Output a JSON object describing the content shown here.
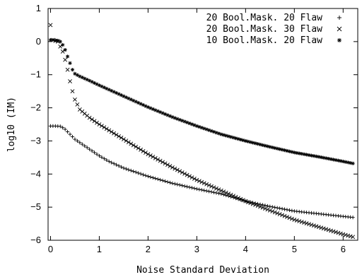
{
  "chart_data": {
    "type": "scatter",
    "title": "",
    "xlabel": "Noise Standard Deviation",
    "ylabel": "log10 (IM)",
    "xlim": [
      -0.05,
      6.3
    ],
    "ylim": [
      -6,
      1
    ],
    "xticks": [
      0,
      1,
      2,
      3,
      4,
      5,
      6
    ],
    "yticks": [
      1,
      0,
      -1,
      -2,
      -3,
      -4,
      -5,
      -6
    ],
    "grid": false,
    "legend_position": "top-right",
    "series": [
      {
        "name": "20 Bool.Mask. 20 Flaw",
        "marker": "plus",
        "x": [
          0.0,
          0.1,
          0.2,
          0.25,
          0.3,
          0.4,
          0.5,
          0.6,
          0.8,
          1.0,
          1.2,
          1.5,
          2.0,
          2.5,
          3.0,
          3.5,
          4.0,
          4.5,
          5.0,
          5.5,
          6.0,
          6.2
        ],
        "y": [
          -2.55,
          -2.55,
          -2.56,
          -2.6,
          -2.65,
          -2.8,
          -2.95,
          -3.05,
          -3.25,
          -3.45,
          -3.62,
          -3.82,
          -4.07,
          -4.28,
          -4.45,
          -4.6,
          -4.82,
          -4.98,
          -5.12,
          -5.2,
          -5.28,
          -5.31
        ]
      },
      {
        "name": "20 Bool.Mask. 30 Flaw",
        "marker": "cross",
        "x": [
          0.0,
          0.05,
          0.1,
          0.15,
          0.2,
          0.25,
          0.3,
          0.35,
          0.4,
          0.45,
          0.5,
          0.6,
          0.8,
          1.0,
          1.2,
          1.5,
          2.0,
          2.5,
          3.0,
          3.5,
          4.0,
          4.5,
          5.0,
          5.5,
          6.0,
          6.2
        ],
        "y": [
          0.5,
          0.05,
          0.02,
          0.0,
          -0.15,
          -0.3,
          -0.55,
          -0.85,
          -1.2,
          -1.5,
          -1.75,
          -2.05,
          -2.3,
          -2.5,
          -2.68,
          -2.95,
          -3.4,
          -3.8,
          -4.18,
          -4.5,
          -4.82,
          -5.1,
          -5.38,
          -5.6,
          -5.82,
          -5.9
        ]
      },
      {
        "name": "10 Bool.Mask. 20 Flaw",
        "marker": "star",
        "x": [
          0.0,
          0.05,
          0.1,
          0.15,
          0.2,
          0.25,
          0.3,
          0.35,
          0.4,
          0.45,
          0.5,
          0.6,
          0.8,
          1.0,
          1.5,
          2.0,
          2.5,
          3.0,
          3.5,
          4.0,
          4.5,
          5.0,
          5.5,
          6.0,
          6.2
        ],
        "y": [
          0.05,
          0.05,
          0.04,
          0.03,
          0.0,
          -0.1,
          -0.25,
          -0.45,
          -0.65,
          -0.85,
          -0.97,
          -1.05,
          -1.18,
          -1.32,
          -1.65,
          -1.98,
          -2.28,
          -2.55,
          -2.8,
          -3.0,
          -3.18,
          -3.35,
          -3.48,
          -3.62,
          -3.68
        ]
      }
    ]
  }
}
